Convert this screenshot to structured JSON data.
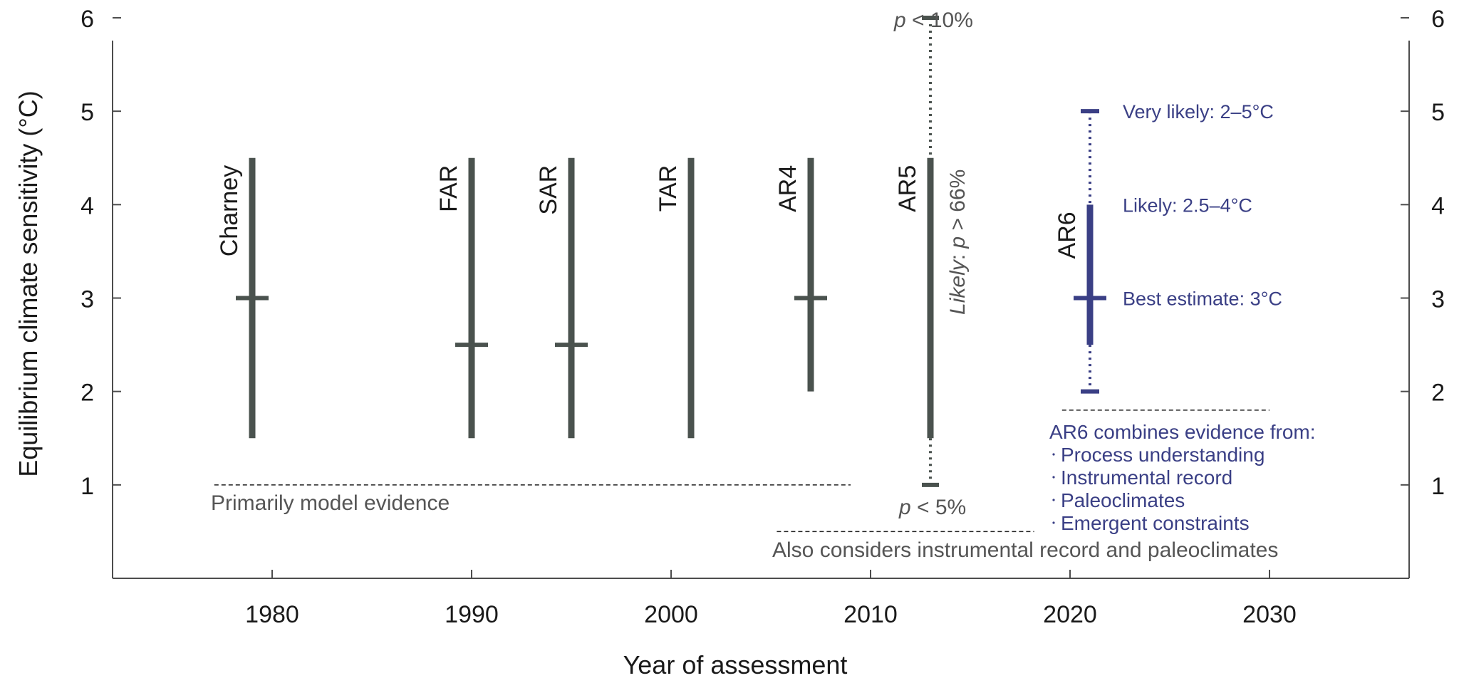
{
  "chart_data": {
    "type": "range_bars",
    "xlabel": "Year of assessment",
    "ylabel": "Equilibrium climate sensitivity (°C)",
    "xlim": [
      1972,
      2037
    ],
    "ylim": [
      0,
      6
    ],
    "x_ticks": [
      1980,
      1990,
      2000,
      2010,
      2020,
      2030
    ],
    "y_ticks": [
      1,
      2,
      3,
      4,
      5,
      6
    ],
    "colors": {
      "past": "#4a524e",
      "ar6": "#3a3f85",
      "axis": "#4d4d4d"
    },
    "assessments": [
      {
        "label": "Charney",
        "year": 1979,
        "low": 1.5,
        "high": 4.5,
        "best": 3.0
      },
      {
        "label": "FAR",
        "year": 1990,
        "low": 1.5,
        "high": 4.5,
        "best": 2.5
      },
      {
        "label": "SAR",
        "year": 1995,
        "low": 1.5,
        "high": 4.5,
        "best": 2.5
      },
      {
        "label": "TAR",
        "year": 2001,
        "low": 1.5,
        "high": 4.5,
        "best": null
      },
      {
        "label": "AR4",
        "year": 2007,
        "low": 2.0,
        "high": 4.5,
        "best": 3.0
      },
      {
        "label": "AR5",
        "year": 2013,
        "low": 1.5,
        "high": 4.5,
        "best": null,
        "dotted_low": 1.0,
        "dotted_high": 6.0
      }
    ],
    "ar6": {
      "label": "AR6",
      "year": 2021,
      "very_likely": [
        2,
        5
      ],
      "likely": [
        2.5,
        4
      ],
      "best": 3
    },
    "annotations": {
      "ar5_top_p": "p",
      "ar5_top_rest": " < 10%",
      "ar5_bottom_p": "p",
      "ar5_bottom_rest": " < 5%",
      "ar5_likely_word": "Likely",
      "ar5_likely_rest_a": ": ",
      "ar5_likely_p": "p",
      "ar5_likely_rest_b": " > 66%",
      "ar6_very_likely": "Very likely:  2–5°C",
      "ar6_likely": "Likely:  2.5–4°C",
      "ar6_best": "Best estimate:  3°C",
      "model_evidence": "Primarily model evidence",
      "also_considers": "Also considers instrumental record and paleoclimates",
      "ar6_combines_title": "AR6 combines evidence from:",
      "ar6_combines_items": [
        "Process understanding",
        "Instrumental record",
        "Paleoclimates",
        "Emergent constraints"
      ]
    }
  }
}
